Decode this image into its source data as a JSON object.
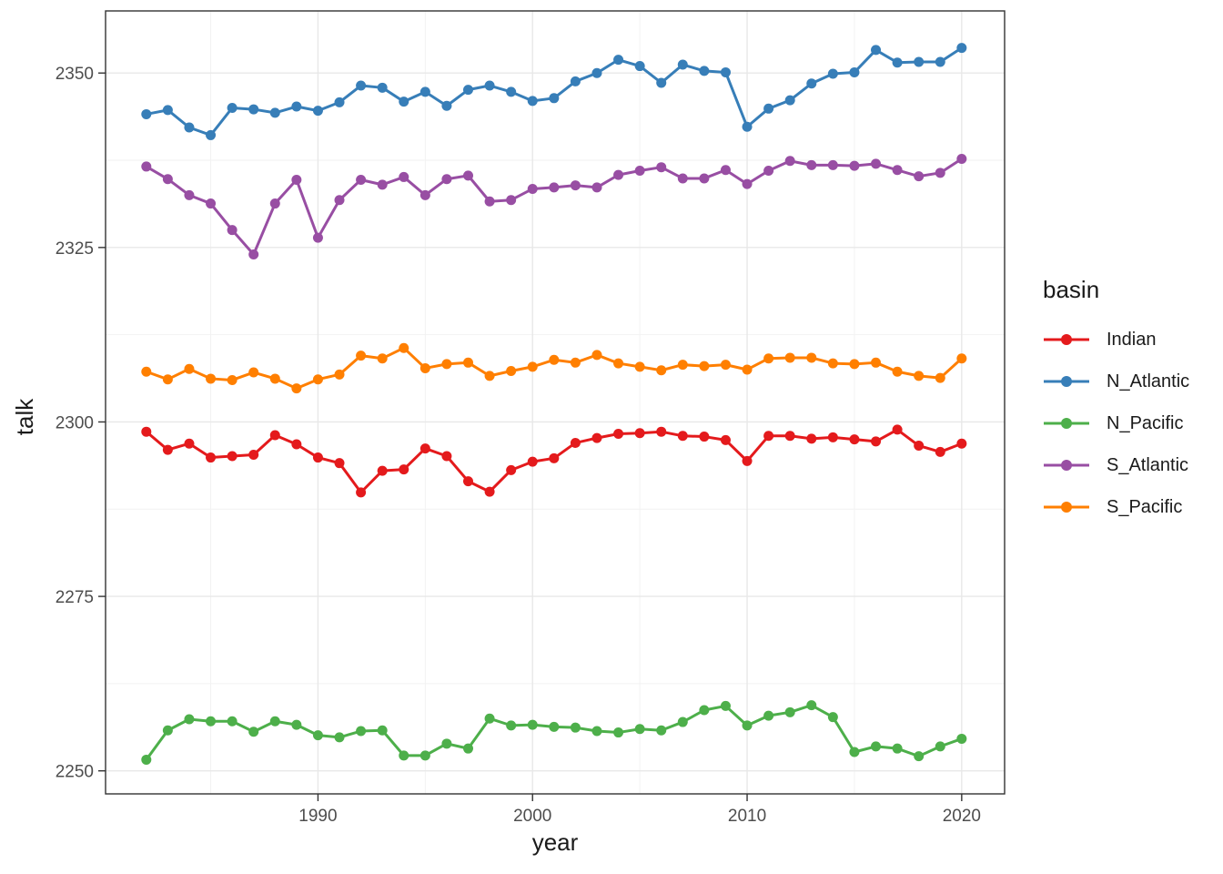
{
  "chart_data": {
    "type": "line",
    "title": "",
    "xlabel": "year",
    "ylabel": "talk",
    "x": [
      1982,
      1983,
      1984,
      1985,
      1986,
      1987,
      1988,
      1989,
      1990,
      1991,
      1992,
      1993,
      1994,
      1995,
      1996,
      1997,
      1998,
      1999,
      2000,
      2001,
      2002,
      2003,
      2004,
      2005,
      2006,
      2007,
      2008,
      2009,
      2010,
      2011,
      2012,
      2013,
      2014,
      2015,
      2016,
      2017,
      2018,
      2019,
      2020
    ],
    "series": [
      {
        "name": "Indian",
        "color": "#e41a1c",
        "values": [
          2298.6,
          2296.0,
          2296.9,
          2294.9,
          2295.1,
          2295.3,
          2298.1,
          2296.8,
          2294.9,
          2294.1,
          2289.9,
          2293.0,
          2293.2,
          2296.2,
          2295.1,
          2291.5,
          2290.0,
          2293.1,
          2294.3,
          2294.8,
          2297.0,
          2297.7,
          2298.3,
          2298.4,
          2298.6,
          2298.0,
          2297.9,
          2297.4,
          2294.4,
          2298.0,
          2298.0,
          2297.6,
          2297.8,
          2297.5,
          2297.2,
          2298.9,
          2296.6,
          2295.7,
          2296.9
        ]
      },
      {
        "name": "N_Atlantic",
        "color": "#377eb8",
        "values": [
          2344.1,
          2344.7,
          2342.2,
          2341.1,
          2345.0,
          2344.8,
          2344.3,
          2345.2,
          2344.6,
          2345.8,
          2348.2,
          2347.9,
          2345.9,
          2347.3,
          2345.3,
          2347.6,
          2348.2,
          2347.3,
          2346.0,
          2346.4,
          2348.8,
          2350.0,
          2351.9,
          2351.0,
          2348.6,
          2351.2,
          2350.3,
          2350.1,
          2342.3,
          2344.9,
          2346.1,
          2348.5,
          2349.9,
          2350.1,
          2353.3,
          2351.5,
          2351.6,
          2351.6,
          2353.6
        ]
      },
      {
        "name": "N_Pacific",
        "color": "#4daf4a",
        "values": [
          2251.6,
          2255.8,
          2257.4,
          2257.1,
          2257.1,
          2255.6,
          2257.1,
          2256.6,
          2255.1,
          2254.8,
          2255.7,
          2255.8,
          2252.2,
          2252.2,
          2253.9,
          2253.2,
          2257.5,
          2256.5,
          2256.6,
          2256.3,
          2256.2,
          2255.7,
          2255.5,
          2256.0,
          2255.8,
          2257.0,
          2258.7,
          2259.3,
          2256.5,
          2257.9,
          2258.4,
          2259.4,
          2257.7,
          2252.7,
          2253.5,
          2253.2,
          2252.1,
          2253.5,
          2254.6
        ]
      },
      {
        "name": "S_Atlantic",
        "color": "#984ea3",
        "values": [
          2336.6,
          2334.8,
          2332.5,
          2331.3,
          2327.5,
          2324.0,
          2331.3,
          2334.7,
          2326.4,
          2331.8,
          2334.7,
          2334.0,
          2335.1,
          2332.5,
          2334.8,
          2335.3,
          2331.6,
          2331.8,
          2333.4,
          2333.6,
          2333.9,
          2333.6,
          2335.4,
          2336.0,
          2336.5,
          2334.9,
          2334.9,
          2336.1,
          2334.1,
          2336.0,
          2337.4,
          2336.8,
          2336.8,
          2336.7,
          2337.0,
          2336.1,
          2335.2,
          2335.7,
          2337.7
        ]
      },
      {
        "name": "S_Pacific",
        "color": "#ff7f00",
        "values": [
          2307.2,
          2306.1,
          2307.6,
          2306.2,
          2306.0,
          2307.1,
          2306.2,
          2304.8,
          2306.1,
          2306.8,
          2309.5,
          2309.1,
          2310.6,
          2307.7,
          2308.3,
          2308.5,
          2306.6,
          2307.3,
          2307.9,
          2308.9,
          2308.5,
          2309.6,
          2308.4,
          2307.9,
          2307.4,
          2308.2,
          2308.0,
          2308.2,
          2307.5,
          2309.1,
          2309.2,
          2309.2,
          2308.4,
          2308.3,
          2308.5,
          2307.2,
          2306.6,
          2306.3,
          2309.1
        ]
      }
    ],
    "axes": {
      "x_ticks": [
        1990,
        2000,
        2010,
        2020
      ],
      "x_minor": [
        1985,
        1995,
        2005,
        2015
      ],
      "y_ticks": [
        2250,
        2275,
        2300,
        2325,
        2350
      ],
      "y_minor": [
        2262.5,
        2287.5,
        2312.5,
        2337.5
      ],
      "x_range": [
        1980.1,
        2022.0
      ],
      "y_range": [
        2246.7,
        2358.9
      ],
      "grid": true
    },
    "legend": {
      "title": "basin",
      "position": "right"
    },
    "style": {
      "point_radius": 5.5,
      "line_width": 3,
      "grid_major": "#e8e8e8",
      "grid_minor": "#f2f2f2",
      "panel_border": "#333333",
      "tick_color": "#333333",
      "tick_label_color": "#4d4d4d",
      "title_color": "#1a1a1a",
      "background": "#ffffff"
    }
  }
}
